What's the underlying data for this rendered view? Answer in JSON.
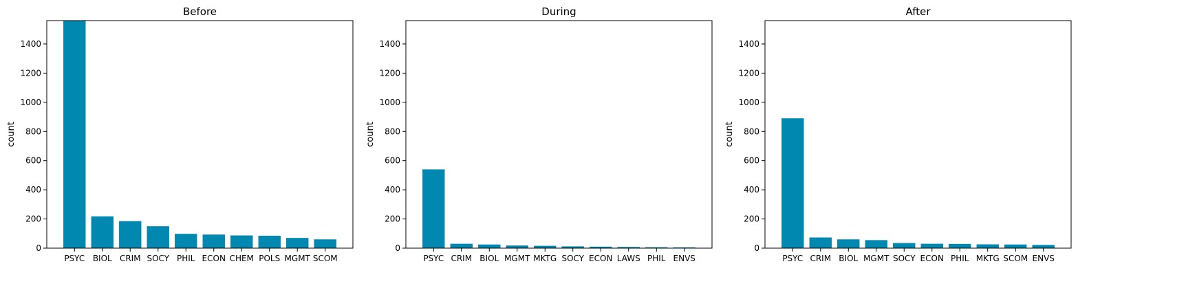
{
  "chart_data": [
    {
      "type": "bar",
      "title": "Before",
      "ylabel": "count",
      "ylim": [
        0,
        1560
      ],
      "yticks": [
        0,
        200,
        400,
        600,
        800,
        1000,
        1200,
        1400
      ],
      "categories": [
        "PSYC",
        "BIOL",
        "CRIM",
        "SOCY",
        "PHIL",
        "ECON",
        "CHEM",
        "POLS",
        "MGMT",
        "SCOM"
      ],
      "values": [
        1560,
        218,
        185,
        150,
        98,
        93,
        87,
        85,
        70,
        60
      ],
      "color": "#0088b0"
    },
    {
      "type": "bar",
      "title": "During",
      "ylabel": "count",
      "ylim": [
        0,
        1560
      ],
      "yticks": [
        0,
        200,
        400,
        600,
        800,
        1000,
        1200,
        1400
      ],
      "categories": [
        "PSYC",
        "CRIM",
        "BIOL",
        "MGMT",
        "MKTG",
        "SOCY",
        "ECON",
        "LAWS",
        "PHIL",
        "ENVS"
      ],
      "values": [
        540,
        30,
        25,
        18,
        16,
        12,
        10,
        8,
        6,
        5
      ],
      "color": "#0088b0"
    },
    {
      "type": "bar",
      "title": "After",
      "ylabel": "count",
      "ylim": [
        0,
        1560
      ],
      "yticks": [
        0,
        200,
        400,
        600,
        800,
        1000,
        1200,
        1400
      ],
      "categories": [
        "PSYC",
        "CRIM",
        "BIOL",
        "MGMT",
        "SOCY",
        "ECON",
        "PHIL",
        "MKTG",
        "SCOM",
        "ENVS"
      ],
      "values": [
        890,
        73,
        60,
        55,
        35,
        30,
        29,
        26,
        25,
        22
      ],
      "color": "#0088b0"
    }
  ]
}
